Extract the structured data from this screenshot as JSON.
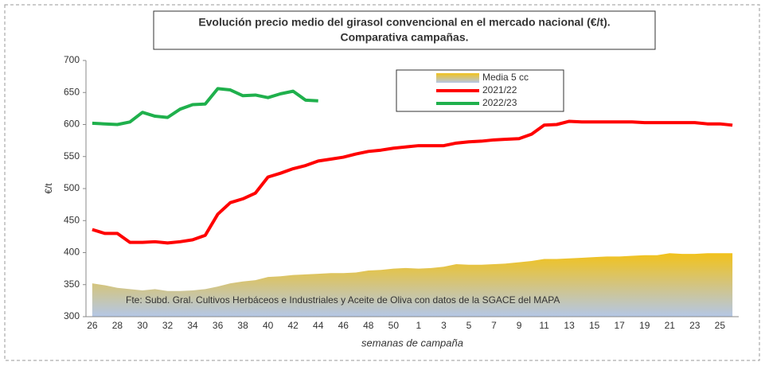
{
  "chart_data": {
    "type": "line",
    "title": "Evolución precio medio del girasol convencional en el mercado nacional (€/t).",
    "subtitle": "Comparativa campañas.",
    "y_label": "€/t",
    "x_label": "semanas de campaña",
    "annotation": "Fte: Subd. Gral. Cultivos Herbáceos e Industriales y Aceite de Oliva con datos de la SGACE del MAPA",
    "categories": [
      "26",
      null,
      "28",
      null,
      "30",
      null,
      "32",
      null,
      "34",
      null,
      "36",
      null,
      "38",
      null,
      "40",
      null,
      "42",
      null,
      "44",
      null,
      "46",
      null,
      "48",
      null,
      "50",
      null,
      "1",
      null,
      "3",
      null,
      "5",
      null,
      "7",
      null,
      "9",
      null,
      "11",
      null,
      "13",
      null,
      "15",
      null,
      "17",
      null,
      "19",
      null,
      "21",
      null,
      "23",
      null,
      "25",
      null
    ],
    "ylim": [
      300,
      700
    ],
    "yticks": [
      300,
      350,
      400,
      450,
      500,
      550,
      600,
      650,
      700
    ],
    "grid": false,
    "series": [
      {
        "name": "Media 5 cc",
        "kind": "area",
        "color": "#f2c21b",
        "values": [
          352,
          349,
          345,
          343,
          341,
          343,
          340,
          340,
          341,
          343,
          347,
          352,
          355,
          357,
          362,
          363,
          365,
          366,
          367,
          368,
          368,
          369,
          372,
          373,
          375,
          376,
          375,
          376,
          378,
          382,
          381,
          381,
          382,
          383,
          385,
          387,
          390,
          390,
          391,
          392,
          393,
          394,
          394,
          395,
          396,
          396,
          399,
          398,
          398,
          399,
          399,
          399
        ]
      },
      {
        "name": "2021/22",
        "kind": "line",
        "color": "#ff0000",
        "values": [
          436,
          430,
          430,
          416,
          416,
          417,
          415,
          417,
          420,
          427,
          460,
          478,
          484,
          493,
          518,
          524,
          531,
          536,
          543,
          546,
          549,
          554,
          558,
          560,
          563,
          565,
          567,
          567,
          567,
          571,
          573,
          574,
          576,
          577,
          578,
          585,
          599,
          600,
          605,
          604,
          604,
          604,
          604,
          604,
          603,
          603,
          603,
          603,
          603,
          601,
          601,
          599
        ]
      },
      {
        "name": "2022/23",
        "kind": "line",
        "color": "#1fb04c",
        "values": [
          602,
          601,
          600,
          604,
          619,
          613,
          611,
          624,
          631,
          632,
          656,
          654,
          645,
          646,
          642,
          648,
          652,
          638,
          637,
          null,
          null,
          null,
          null,
          null,
          null,
          null,
          null,
          null,
          null,
          null,
          null,
          null,
          null,
          null,
          null,
          null,
          null,
          null,
          null,
          null,
          null,
          null,
          null,
          null,
          null,
          null,
          null,
          null,
          null,
          null,
          null,
          null
        ]
      }
    ]
  }
}
